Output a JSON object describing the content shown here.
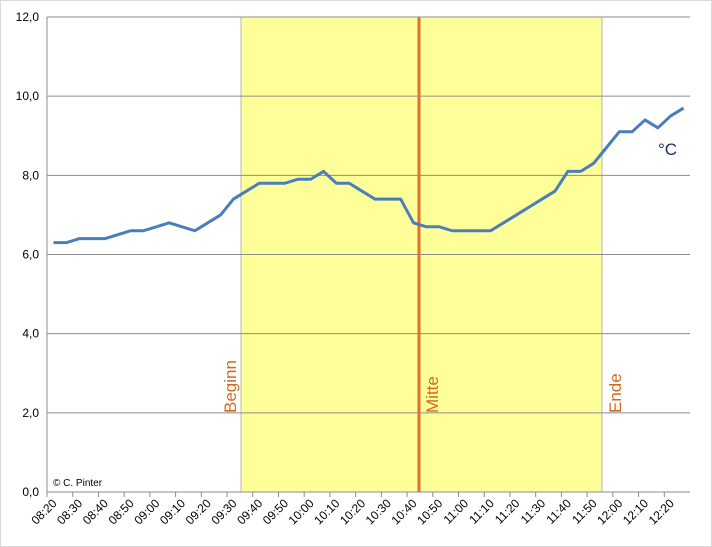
{
  "chart_data": {
    "type": "line",
    "categories": [
      "08:20",
      null,
      "08:30",
      null,
      "08:40",
      null,
      "08:50",
      null,
      "09:00",
      null,
      "09:10",
      null,
      "09:20",
      null,
      "09:30",
      null,
      "09:40",
      null,
      "09:50",
      null,
      "10:00",
      null,
      "10:10",
      null,
      "10:20",
      null,
      "10:30",
      null,
      "10:40",
      null,
      "10:50",
      null,
      "11:00",
      null,
      "11:10",
      null,
      "11:20",
      null,
      "11:30",
      null,
      "11:40",
      null,
      "11:50",
      null,
      "12:00",
      null,
      "12:10",
      null,
      "12:20",
      null
    ],
    "series": [
      {
        "name": "°C",
        "color": "#4a7ebb",
        "values": [
          6.3,
          6.3,
          6.4,
          6.4,
          6.4,
          6.5,
          6.6,
          6.6,
          6.7,
          6.8,
          6.7,
          6.6,
          6.8,
          7.0,
          7.4,
          7.6,
          7.8,
          7.8,
          7.8,
          7.9,
          7.9,
          8.1,
          7.8,
          7.8,
          7.6,
          7.4,
          7.4,
          7.4,
          6.8,
          6.7,
          6.7,
          6.6,
          6.6,
          6.6,
          6.6,
          6.8,
          7.0,
          7.2,
          7.4,
          7.6,
          8.1,
          8.1,
          8.3,
          8.7,
          9.1,
          9.1,
          9.4,
          9.2,
          9.5,
          9.7
        ]
      }
    ],
    "ylim": [
      0,
      12
    ],
    "yticks": [
      {
        "value": 0,
        "label": "0,0"
      },
      {
        "value": 2,
        "label": "2,0"
      },
      {
        "value": 4,
        "label": "4,0"
      },
      {
        "value": 6,
        "label": "6,0"
      },
      {
        "value": 8,
        "label": "8,0"
      },
      {
        "value": 10,
        "label": "10,0"
      },
      {
        "value": 12,
        "label": "12,0"
      }
    ],
    "grid": true,
    "annotations": [
      "Beginn",
      "Mitte",
      "Ende",
      "© C. Pinter"
    ]
  }
}
